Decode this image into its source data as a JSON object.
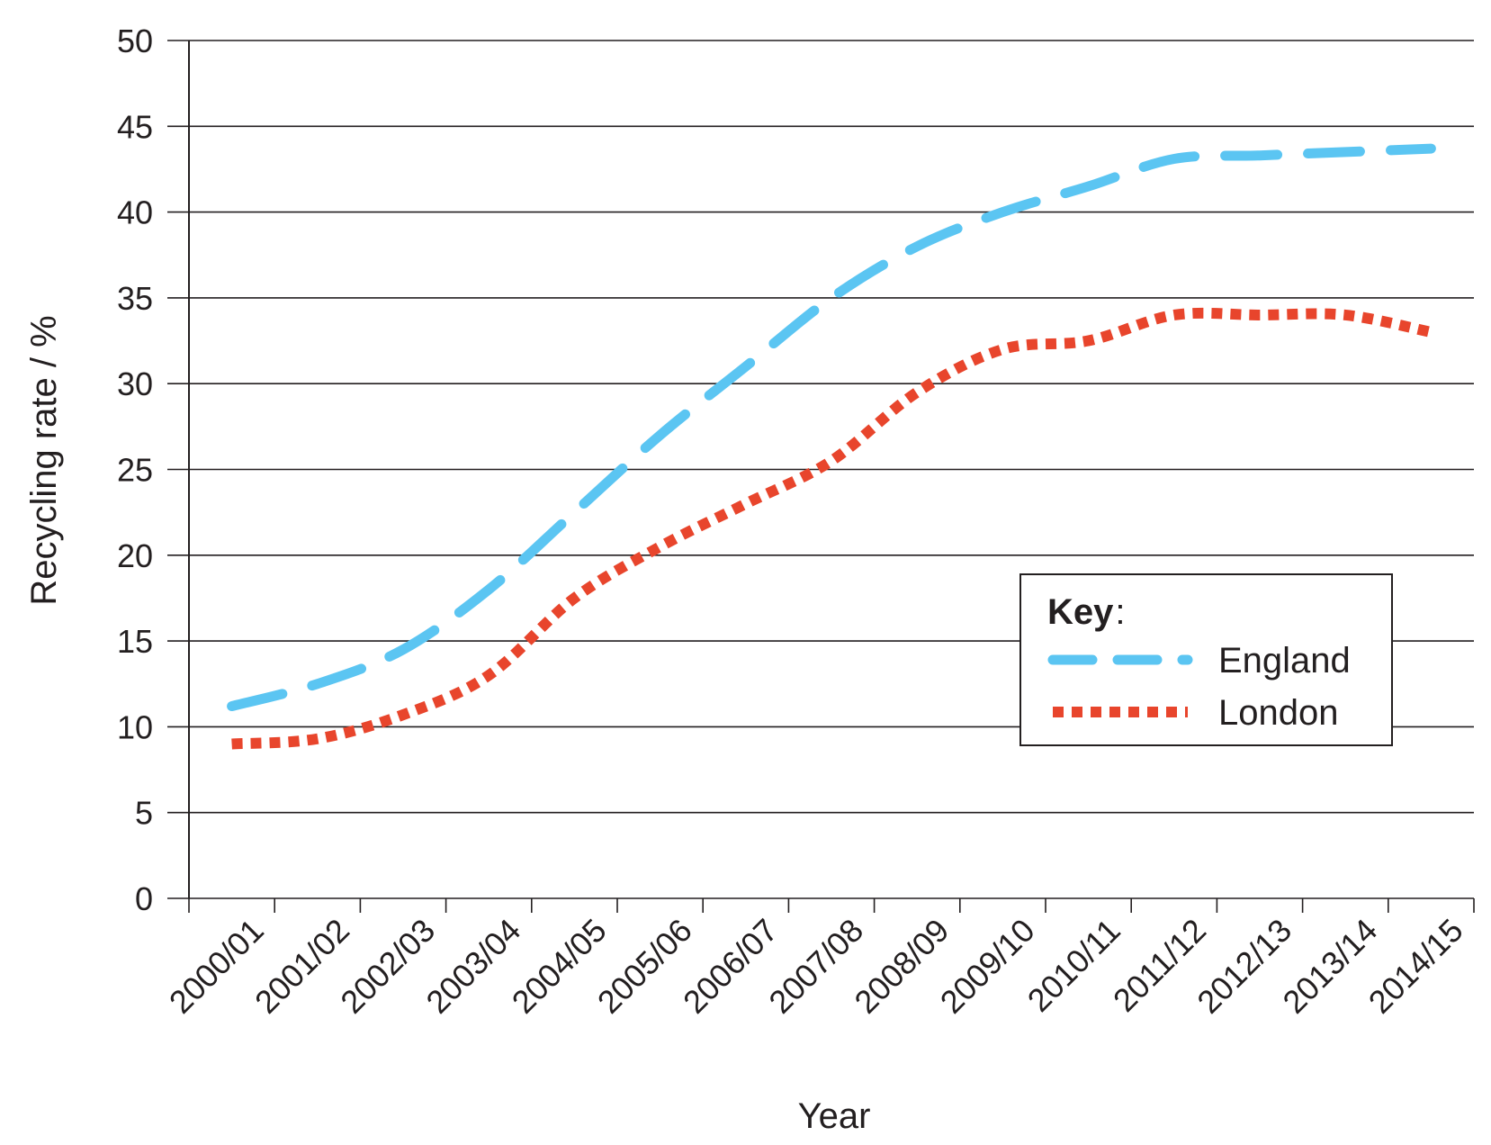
{
  "chart_data": {
    "type": "line",
    "xlabel": "Year",
    "ylabel": "Recycling rate / %",
    "ylim": [
      0,
      50
    ],
    "yticks": [
      0,
      5,
      10,
      15,
      20,
      25,
      30,
      35,
      40,
      45,
      50
    ],
    "grid": "horizontal",
    "categories": [
      "2000/01",
      "2001/02",
      "2002/03",
      "2003/04",
      "2004/05",
      "2005/06",
      "2006/07",
      "2007/08",
      "2008/09",
      "2009/10",
      "2010/11",
      "2011/12",
      "2012/13",
      "2013/14",
      "2014/15"
    ],
    "series": [
      {
        "name": "England",
        "color": "#5bc5f2",
        "style": "dashed",
        "values": [
          11.2,
          12.5,
          14.5,
          18.0,
          22.5,
          27.0,
          31.0,
          35.0,
          38.0,
          40.0,
          41.5,
          43.1,
          43.3,
          43.5,
          43.7
        ]
      },
      {
        "name": "London",
        "color": "#e8452c",
        "style": "dotted",
        "values": [
          9.0,
          9.3,
          10.7,
          13.0,
          17.5,
          20.5,
          23.0,
          25.5,
          29.5,
          32.0,
          32.5,
          34.0,
          34.0,
          34.0,
          33.0
        ]
      }
    ],
    "legend": {
      "title": "Key",
      "title_suffix": ":",
      "position": "center-right"
    }
  }
}
